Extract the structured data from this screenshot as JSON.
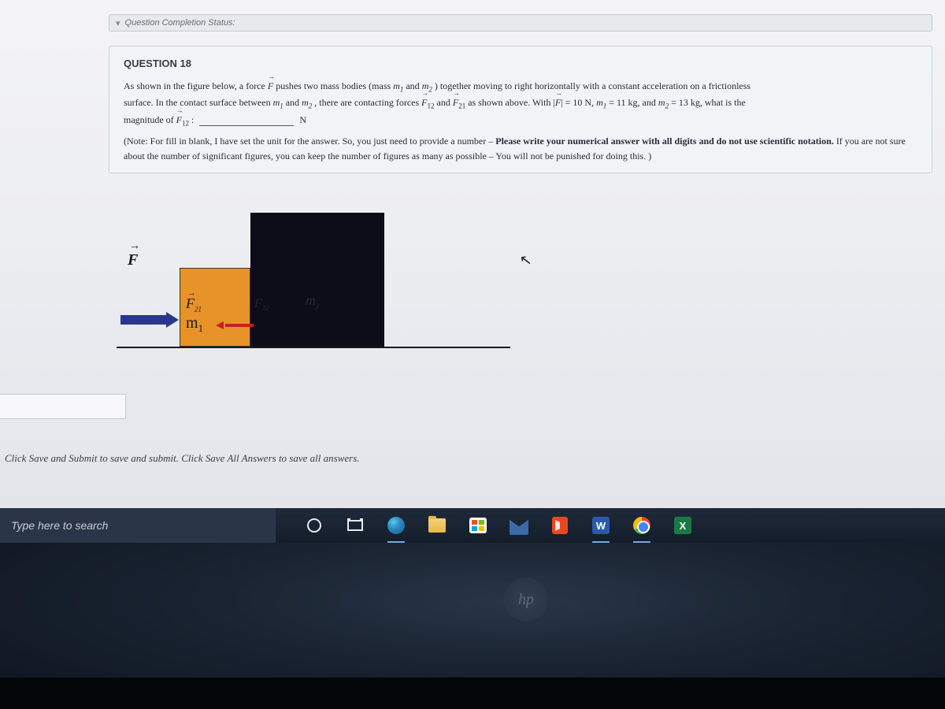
{
  "completion_status": "Question Completion Status:",
  "question": {
    "number": "QUESTION 18",
    "line1_a": "As shown in the figure below, a force ",
    "line1_b": " pushes two mass bodies (mass ",
    "line1_c": " and ",
    "line1_d": ") together moving to right horizontally with a constant acceleration on a frictionless",
    "line2_a": "surface. In the contact surface between ",
    "line2_b": " and ",
    "line2_c": ", there are contacting forces ",
    "line2_d": " and ",
    "line2_e": " as shown above. With ",
    "line2_f": " = 10 N, ",
    "line2_g": " = 11 kg, and ",
    "line2_h": " = 13 kg, what is the",
    "line3_a": "magnitude of ",
    "line3_unit": " N",
    "note_a": "(Note: For fill in blank, I have set the unit for the answer. So, you just need to provide a number – ",
    "note_b": "Please write your numerical answer with all digits and do not use scientific notation.",
    "note_c": " If you are not sure about the number of significant figures, you can keep the number of figures as many as possible – You will not be punished for doing this. )"
  },
  "symbols": {
    "F": "F",
    "m1": "m",
    "m1_sub": "1",
    "m2": "m",
    "m2_sub": "2",
    "F12": "F",
    "F12_sub": "12",
    "F21": "F",
    "F21_sub": "21",
    "abs_open": "|",
    "abs_close": "|"
  },
  "figure": {
    "F": "F",
    "F21": "F",
    "F21_sub": "21",
    "F12": "F",
    "F12_sub": "12",
    "m1": "m",
    "m1_sub": "1",
    "m2": "m",
    "m2_sub": "2"
  },
  "save_line": "Click Save and Submit to save and submit. Click Save All Answers to save all answers.",
  "taskbar": {
    "search_placeholder": "Type here to search",
    "word_letter": "W",
    "excel_letter": "X",
    "hp": "hp"
  }
}
